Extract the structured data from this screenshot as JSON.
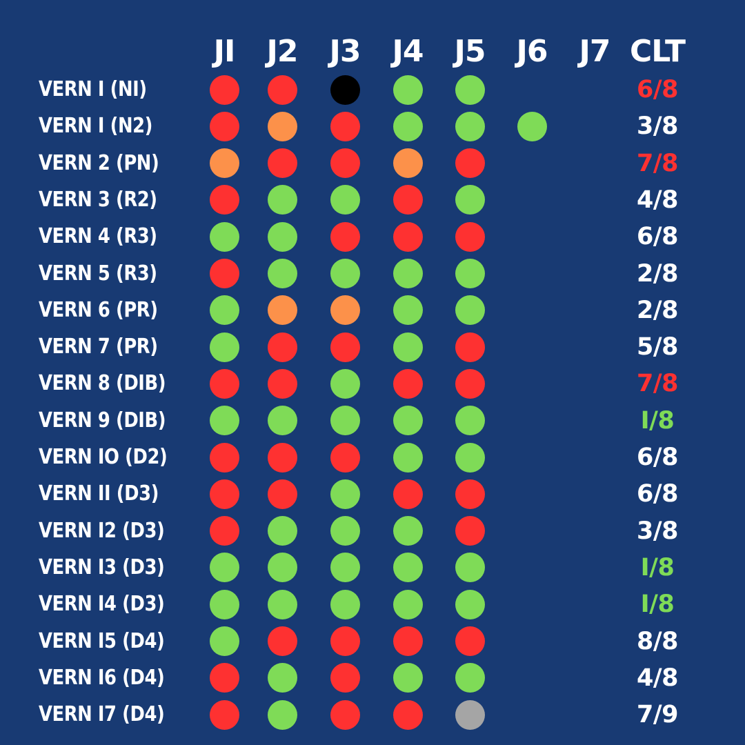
{
  "headers": {
    "columns": [
      "JI",
      "J2",
      "J3",
      "J4",
      "J5",
      "J6",
      "J7"
    ],
    "score": "CLT"
  },
  "colors": {
    "background": "#183a73",
    "green": "#7fdb57",
    "red": "#fe3131",
    "orange": "#fc914a",
    "black": "#000000",
    "grey": "#a5a5a5",
    "text": "#ffffff"
  },
  "rows": [
    {
      "label": "VERN I (NI)",
      "results": [
        "red",
        "red",
        "black",
        "green",
        "green",
        null,
        null
      ],
      "score": "6/8",
      "score_color": "red"
    },
    {
      "label": "VERN I (N2)",
      "results": [
        "red",
        "orange",
        "red",
        "green",
        "green",
        "green",
        null
      ],
      "score": "3/8",
      "score_color": "white"
    },
    {
      "label": "VERN 2 (PN)",
      "results": [
        "orange",
        "red",
        "red",
        "orange",
        "red",
        null,
        null
      ],
      "score": "7/8",
      "score_color": "red"
    },
    {
      "label": "VERN 3 (R2)",
      "results": [
        "red",
        "green",
        "green",
        "red",
        "green",
        null,
        null
      ],
      "score": "4/8",
      "score_color": "white"
    },
    {
      "label": "VERN 4 (R3)",
      "results": [
        "green",
        "green",
        "red",
        "red",
        "red",
        null,
        null
      ],
      "score": "6/8",
      "score_color": "white"
    },
    {
      "label": "VERN 5 (R3)",
      "results": [
        "red",
        "green",
        "green",
        "green",
        "green",
        null,
        null
      ],
      "score": "2/8",
      "score_color": "white"
    },
    {
      "label": "VERN 6 (PR)",
      "results": [
        "green",
        "orange",
        "orange",
        "green",
        "green",
        null,
        null
      ],
      "score": "2/8",
      "score_color": "white"
    },
    {
      "label": "VERN 7 (PR)",
      "results": [
        "green",
        "red",
        "red",
        "green",
        "red",
        null,
        null
      ],
      "score": "5/8",
      "score_color": "white"
    },
    {
      "label": "VERN 8 (DIB)",
      "results": [
        "red",
        "red",
        "green",
        "red",
        "red",
        null,
        null
      ],
      "score": "7/8",
      "score_color": "red"
    },
    {
      "label": "VERN 9 (DIB)",
      "results": [
        "green",
        "green",
        "green",
        "green",
        "green",
        null,
        null
      ],
      "score": "I/8",
      "score_color": "green"
    },
    {
      "label": "VERN IO (D2)",
      "results": [
        "red",
        "red",
        "red",
        "green",
        "green",
        null,
        null
      ],
      "score": "6/8",
      "score_color": "white"
    },
    {
      "label": "VERN II (D3)",
      "results": [
        "red",
        "red",
        "green",
        "red",
        "red",
        null,
        null
      ],
      "score": "6/8",
      "score_color": "white"
    },
    {
      "label": "VERN I2 (D3)",
      "results": [
        "red",
        "green",
        "green",
        "green",
        "red",
        null,
        null
      ],
      "score": "3/8",
      "score_color": "white"
    },
    {
      "label": "VERN I3 (D3)",
      "results": [
        "green",
        "green",
        "green",
        "green",
        "green",
        null,
        null
      ],
      "score": "I/8",
      "score_color": "green"
    },
    {
      "label": "VERN I4 (D3)",
      "results": [
        "green",
        "green",
        "green",
        "green",
        "green",
        null,
        null
      ],
      "score": "I/8",
      "score_color": "green"
    },
    {
      "label": "VERN I5 (D4)",
      "results": [
        "green",
        "red",
        "red",
        "red",
        "red",
        null,
        null
      ],
      "score": "8/8",
      "score_color": "white"
    },
    {
      "label": "VERN I6 (D4)",
      "results": [
        "red",
        "green",
        "red",
        "green",
        "green",
        null,
        null
      ],
      "score": "4/8",
      "score_color": "white"
    },
    {
      "label": "VERN I7 (D4)",
      "results": [
        "red",
        "green",
        "red",
        "red",
        "grey",
        null,
        null
      ],
      "score": "7/9",
      "score_color": "white"
    }
  ]
}
